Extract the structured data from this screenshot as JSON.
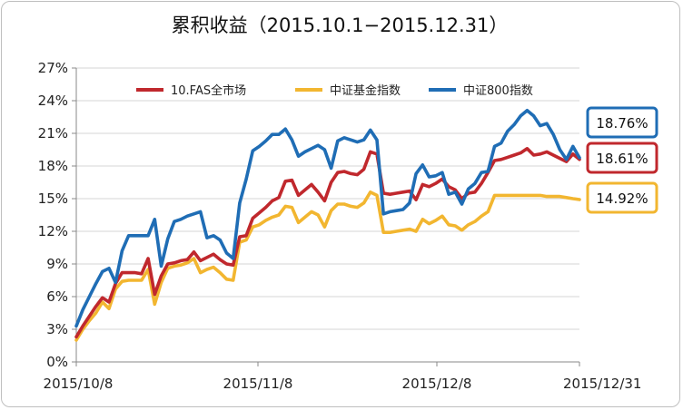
{
  "chart_data": {
    "type": "line",
    "title": "累积收益（2015.10.1−2015.12.31）",
    "x_tick_labels": [
      "2015/10/8",
      "2015/11/8",
      "2015/12/8",
      "2015/12/31"
    ],
    "y_tick_labels": [
      "0%",
      "3%",
      "6%",
      "9%",
      "12%",
      "15%",
      "18%",
      "21%",
      "24%",
      "27%"
    ],
    "ylim": [
      0,
      27
    ],
    "y_unit": "%",
    "grid": true,
    "legend_position": "top",
    "series": [
      {
        "name": "10.FAS全市场",
        "color": "#c0282d",
        "end_label": "18.61%",
        "values": [
          2.3,
          3.3,
          4.2,
          5.1,
          5.9,
          5.5,
          7.2,
          8.2,
          8.2,
          8.2,
          8.1,
          9.5,
          6.2,
          7.9,
          9.0,
          9.1,
          9.3,
          9.4,
          10.1,
          9.3,
          9.6,
          9.9,
          9.4,
          9.0,
          8.9,
          11.5,
          11.6,
          13.2,
          13.7,
          14.2,
          14.8,
          15.1,
          16.6,
          16.7,
          15.3,
          15.8,
          16.3,
          15.6,
          14.8,
          16.5,
          17.4,
          17.5,
          17.3,
          17.2,
          17.7,
          19.3,
          19.1,
          15.5,
          15.4,
          15.5,
          15.6,
          15.7,
          14.9,
          16.3,
          16.1,
          16.4,
          16.8,
          16.1,
          15.8,
          15.0,
          15.5,
          15.6,
          16.4,
          17.4,
          18.5,
          18.6,
          18.8,
          19.0,
          19.2,
          19.6,
          19.0,
          19.1,
          19.3,
          19.0,
          18.7,
          18.4,
          19.1,
          18.61
        ]
      },
      {
        "name": "中证基金指数",
        "color": "#f2b630",
        "end_label": "14.92%",
        "values": [
          2.0,
          3.0,
          3.8,
          4.5,
          5.5,
          4.9,
          6.7,
          7.4,
          7.5,
          7.5,
          7.5,
          8.5,
          5.3,
          7.3,
          8.6,
          8.8,
          8.9,
          9.1,
          9.5,
          8.2,
          8.5,
          8.7,
          8.2,
          7.6,
          7.5,
          11.0,
          11.2,
          12.4,
          12.6,
          13.0,
          13.3,
          13.5,
          14.3,
          14.2,
          12.8,
          13.3,
          13.8,
          13.5,
          12.4,
          13.9,
          14.5,
          14.5,
          14.3,
          14.2,
          14.6,
          15.6,
          15.3,
          11.9,
          11.9,
          12.0,
          12.1,
          12.2,
          12.0,
          13.1,
          12.7,
          13.0,
          13.4,
          12.6,
          12.5,
          12.1,
          12.6,
          12.9,
          13.4,
          13.8,
          15.3,
          15.3,
          15.3,
          15.3,
          15.3,
          15.3,
          15.3,
          15.3,
          15.2,
          15.2,
          15.2,
          15.1,
          15.0,
          14.92
        ]
      },
      {
        "name": "中证800指数",
        "color": "#1f6db5",
        "end_label": "18.76%",
        "values": [
          3.3,
          4.8,
          6.0,
          7.2,
          8.3,
          8.6,
          7.3,
          10.2,
          11.6,
          11.6,
          11.6,
          11.6,
          13.1,
          8.8,
          11.3,
          12.9,
          13.1,
          13.4,
          13.6,
          13.8,
          11.4,
          11.6,
          11.2,
          10.0,
          9.5,
          14.6,
          16.8,
          19.4,
          19.8,
          20.3,
          20.9,
          20.9,
          21.4,
          20.4,
          18.9,
          19.3,
          19.6,
          19.9,
          19.5,
          17.8,
          20.3,
          20.6,
          20.4,
          20.2,
          20.4,
          21.3,
          20.4,
          13.6,
          13.8,
          13.9,
          14.0,
          14.6,
          17.3,
          18.1,
          17.0,
          17.1,
          17.4,
          15.4,
          15.6,
          14.5,
          15.9,
          16.4,
          17.4,
          17.5,
          19.8,
          20.1,
          21.2,
          21.8,
          22.6,
          23.1,
          22.6,
          21.7,
          21.9,
          20.9,
          19.5,
          18.6,
          19.8,
          18.76
        ]
      }
    ]
  }
}
